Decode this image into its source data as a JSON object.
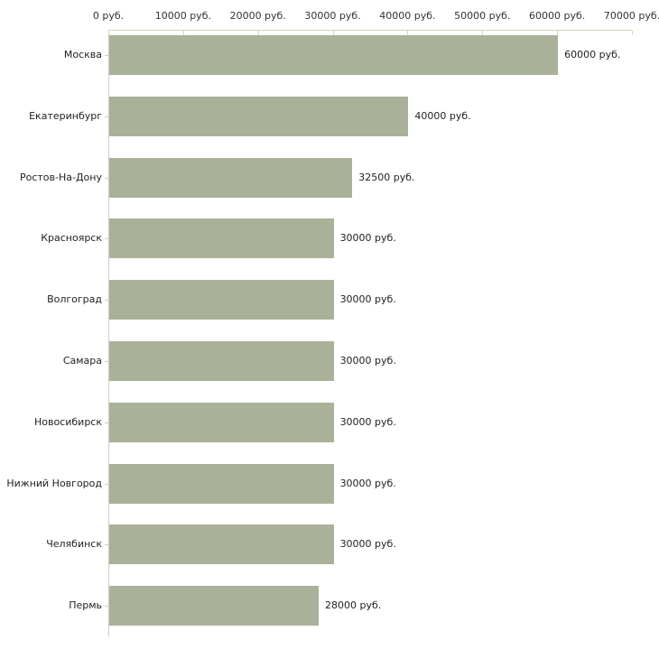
{
  "chart_data": {
    "type": "bar",
    "orientation": "horizontal",
    "title": "",
    "xlabel": "",
    "ylabel": "",
    "categories": [
      "Москва",
      "Екатеринбург",
      "Ростов-На-Дону",
      "Красноярск",
      "Волгоград",
      "Самара",
      "Новосибирск",
      "Нижний Новгород",
      "Челябинск",
      "Пермь"
    ],
    "values": [
      60000,
      40000,
      32500,
      30000,
      30000,
      30000,
      30000,
      30000,
      30000,
      28000
    ],
    "value_labels": [
      "60000 руб.",
      "40000 руб.",
      "32500 руб.",
      "30000 руб.",
      "30000 руб.",
      "30000 руб.",
      "30000 руб.",
      "30000 руб.",
      "30000 руб.",
      "28000 руб."
    ],
    "x_axis": {
      "position": "top",
      "min": 0,
      "max": 70000,
      "tick_values": [
        0,
        10000,
        20000,
        30000,
        40000,
        50000,
        60000,
        70000
      ],
      "tick_labels": [
        "0 руб.",
        "10000 руб.",
        "20000 руб.",
        "30000 руб.",
        "40000 руб.",
        "50000 руб.",
        "60000 руб.",
        "70000 руб."
      ],
      "unit_suffix": " руб."
    },
    "grid": false,
    "legend": false,
    "colors": {
      "bar": "#a9b299",
      "value_axis_line": "#d6d5b1",
      "category_axis_line": "#cccccc",
      "text": "#222222",
      "background": "#ffffff"
    }
  }
}
